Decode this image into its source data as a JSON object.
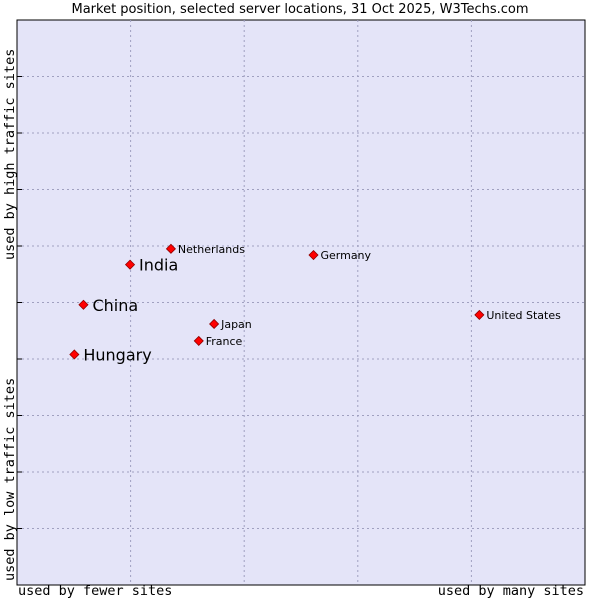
{
  "chart_data": {
    "type": "scatter",
    "title": "Market position, selected server locations, 31 Oct 2025, W3Techs.com",
    "xlabel_low": "used by fewer sites",
    "xlabel_high": "used by many sites",
    "ylabel_low": "used by low traffic sites",
    "ylabel_high": "used by high traffic sites",
    "xlim": [
      0,
      100
    ],
    "ylim": [
      0,
      100
    ],
    "grid": true,
    "points": [
      {
        "name": "Netherlands",
        "x": 27.1,
        "y": 59.5,
        "emphasis": false
      },
      {
        "name": "India",
        "x": 19.9,
        "y": 56.7,
        "emphasis": true
      },
      {
        "name": "Germany",
        "x": 52.2,
        "y": 58.4,
        "emphasis": false
      },
      {
        "name": "China",
        "x": 11.7,
        "y": 49.6,
        "emphasis": true
      },
      {
        "name": "United States",
        "x": 81.4,
        "y": 47.8,
        "emphasis": false
      },
      {
        "name": "Japan",
        "x": 34.7,
        "y": 46.2,
        "emphasis": false
      },
      {
        "name": "France",
        "x": 32.0,
        "y": 43.2,
        "emphasis": false
      },
      {
        "name": "Hungary",
        "x": 10.1,
        "y": 40.8,
        "emphasis": true
      }
    ]
  },
  "colors": {
    "plot_bg": "#e4e4f8",
    "grid": "#a0a0c0",
    "marker": "#ff0000",
    "marker_edge": "#900000"
  }
}
